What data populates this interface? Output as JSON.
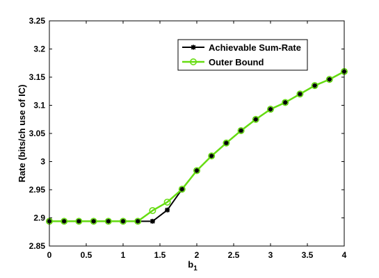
{
  "chart_data": {
    "type": "line",
    "title": "",
    "xlabel": "b",
    "xlabel_subscript": "1",
    "ylabel": "Rate (bits/ch use of IC)",
    "xlim": [
      0,
      4
    ],
    "ylim": [
      2.85,
      3.25
    ],
    "grid": false,
    "legend_position": "top-right",
    "xticks": [
      0,
      0.5,
      1,
      1.5,
      2,
      2.5,
      3,
      3.5,
      4
    ],
    "xtick_labels": [
      "0",
      "0.5",
      "1",
      "1.5",
      "2",
      "2.5",
      "3",
      "3.5",
      "4"
    ],
    "yticks": [
      2.85,
      2.9,
      2.95,
      3.0,
      3.05,
      3.1,
      3.15,
      3.2,
      3.25
    ],
    "ytick_labels": [
      "2.85",
      "2.9",
      "2.95",
      "3",
      "3.05",
      "3.1",
      "3.15",
      "3.2",
      "3.25"
    ],
    "x": [
      0,
      0.2,
      0.4,
      0.6,
      0.8,
      1.0,
      1.2,
      1.4,
      1.6,
      1.8,
      2.0,
      2.2,
      2.4,
      2.6,
      2.8,
      3.0,
      3.2,
      3.4,
      3.6,
      3.8,
      4.0
    ],
    "series": [
      {
        "name": "Achievable Sum-Rate",
        "color": "#000000",
        "marker": "asterisk",
        "values": [
          2.894,
          2.894,
          2.894,
          2.894,
          2.894,
          2.894,
          2.894,
          2.894,
          2.914,
          2.951,
          2.984,
          3.01,
          3.033,
          3.055,
          3.075,
          3.093,
          3.105,
          3.12,
          3.135,
          3.146,
          3.16
        ]
      },
      {
        "name": "Outer Bound",
        "color": "#66dd11",
        "marker": "circle",
        "values": [
          2.894,
          2.894,
          2.894,
          2.894,
          2.894,
          2.894,
          2.894,
          2.913,
          2.928,
          2.951,
          2.984,
          3.01,
          3.033,
          3.055,
          3.075,
          3.093,
          3.105,
          3.12,
          3.135,
          3.146,
          3.16
        ]
      }
    ]
  }
}
